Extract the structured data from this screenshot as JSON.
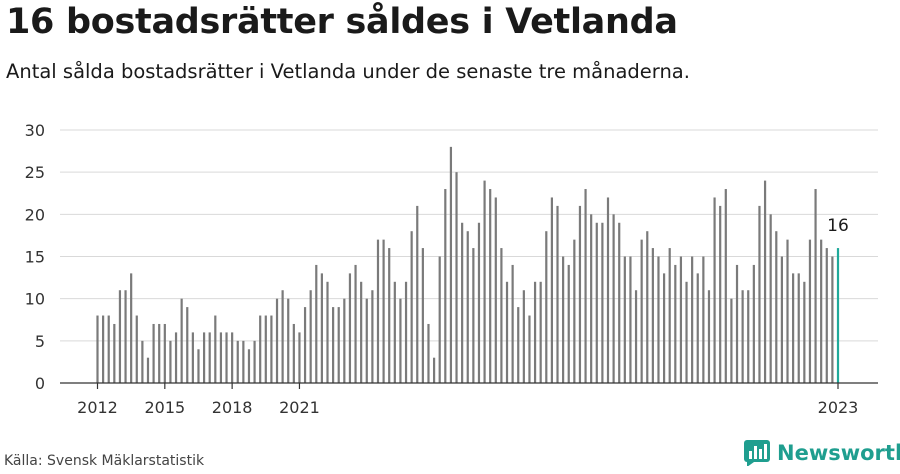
{
  "header": {
    "title": "16 bostadsrätter såldes i Vetlanda",
    "subtitle": "Antal sålda bostadsrätter i Vetlanda under de senaste tre månaderna."
  },
  "footer": {
    "source": "Källa: Svensk Mäklarstatistik",
    "brand": "Newsworthy"
  },
  "colors": {
    "bar": "#7a7a7a",
    "highlight": "#1fa99a",
    "grid": "#d9d9d9",
    "axis": "#333333",
    "brand": "#1f9e8f"
  },
  "icons": {
    "brand": "newsworthy-logo-icon"
  },
  "chart_data": {
    "type": "bar",
    "title": "16 bostadsrätter såldes i Vetlanda",
    "subtitle": "Antal sålda bostadsrätter i Vetlanda under de senaste tre månaderna.",
    "xlabel": "",
    "ylabel": "",
    "ylim": [
      0,
      30
    ],
    "yticks": [
      0,
      5,
      10,
      15,
      20,
      25,
      30
    ],
    "xticks": [
      "2012",
      "2015",
      "2018",
      "2021",
      "2023"
    ],
    "grid": true,
    "x_start": "2012-01",
    "x_step": "3 months",
    "values": [
      8,
      8,
      8,
      7,
      11,
      11,
      13,
      8,
      5,
      3,
      7,
      7,
      7,
      5,
      6,
      10,
      9,
      6,
      4,
      6,
      6,
      8,
      6,
      6,
      6,
      5,
      5,
      4,
      5,
      8,
      8,
      8,
      10,
      11,
      10,
      7,
      6,
      9,
      11,
      14,
      13,
      12,
      9,
      9,
      10,
      13,
      14,
      12,
      10,
      11,
      17,
      17,
      16,
      12,
      10,
      12,
      18,
      21,
      16,
      7,
      3,
      15,
      23,
      28,
      25,
      19,
      18,
      16,
      19,
      24,
      23,
      22,
      16,
      12,
      14,
      9,
      11,
      8,
      12,
      12,
      18,
      22,
      21,
      15,
      14,
      17,
      21,
      23,
      20,
      19,
      19,
      22,
      20,
      19,
      15,
      15,
      11,
      17,
      18,
      16,
      15,
      13,
      16,
      14,
      15,
      12,
      15,
      13,
      15,
      11,
      22,
      21,
      23,
      10,
      14,
      11,
      11,
      14,
      21,
      24,
      20,
      18,
      15,
      17,
      13,
      13,
      12,
      17,
      23,
      17,
      16,
      15,
      16
    ],
    "annotation": {
      "label": "16",
      "value": 16,
      "position": "last"
    }
  }
}
